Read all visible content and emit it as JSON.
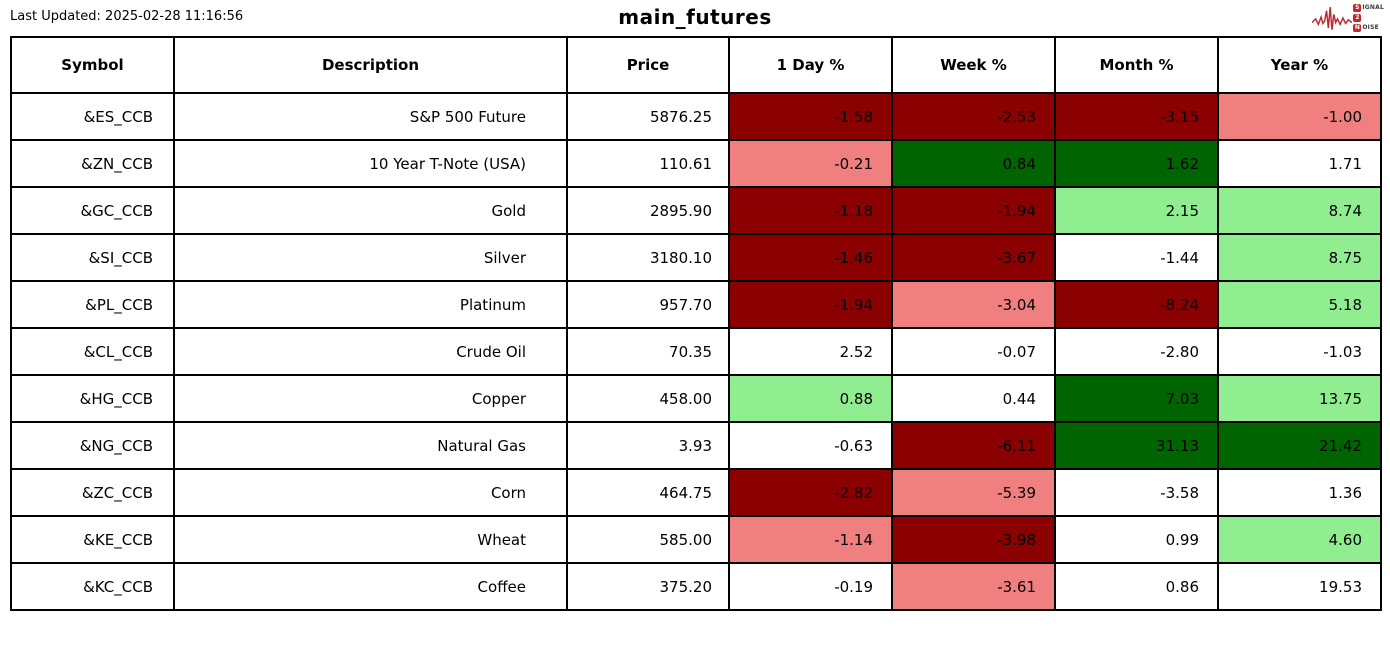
{
  "header": {
    "last_updated": "Last Updated: 2025-02-28 11:16:56",
    "title": "main_futures",
    "logo": {
      "s": "S",
      "ignal": "IGNAL",
      "two": "2",
      "n": "N",
      "oise": "OISE"
    }
  },
  "colors": {
    "dark_red": "#8b0000",
    "light_red": "#f08080",
    "dark_green": "#006400",
    "light_green": "#90ee90",
    "white": "#ffffff",
    "logo_red": "#c0272d",
    "border": "#000000"
  },
  "table": {
    "columns": [
      "Symbol",
      "Description",
      "Price",
      "1 Day %",
      "Week %",
      "Month %",
      "Year %"
    ],
    "rows": [
      {
        "symbol": "&ES_CCB",
        "description": "S&P 500 Future",
        "price": "5876.25",
        "day": {
          "value": "-1.58",
          "color": "dark_red"
        },
        "week": {
          "value": "-2.53",
          "color": "dark_red"
        },
        "month": {
          "value": "-3.15",
          "color": "dark_red"
        },
        "year": {
          "value": "-1.00",
          "color": "light_red"
        }
      },
      {
        "symbol": "&ZN_CCB",
        "description": "10 Year T-Note (USA)",
        "price": "110.61",
        "day": {
          "value": "-0.21",
          "color": "light_red"
        },
        "week": {
          "value": "0.84",
          "color": "dark_green"
        },
        "month": {
          "value": "1.62",
          "color": "dark_green"
        },
        "year": {
          "value": "1.71",
          "color": "white"
        }
      },
      {
        "symbol": "&GC_CCB",
        "description": "Gold",
        "price": "2895.90",
        "day": {
          "value": "-1.18",
          "color": "dark_red"
        },
        "week": {
          "value": "-1.94",
          "color": "dark_red"
        },
        "month": {
          "value": "2.15",
          "color": "light_green"
        },
        "year": {
          "value": "8.74",
          "color": "light_green"
        }
      },
      {
        "symbol": "&SI_CCB",
        "description": "Silver",
        "price": "3180.10",
        "day": {
          "value": "-1.46",
          "color": "dark_red"
        },
        "week": {
          "value": "-3.67",
          "color": "dark_red"
        },
        "month": {
          "value": "-1.44",
          "color": "white"
        },
        "year": {
          "value": "8.75",
          "color": "light_green"
        }
      },
      {
        "symbol": "&PL_CCB",
        "description": "Platinum",
        "price": "957.70",
        "day": {
          "value": "-1.94",
          "color": "dark_red"
        },
        "week": {
          "value": "-3.04",
          "color": "light_red"
        },
        "month": {
          "value": "-8.24",
          "color": "dark_red"
        },
        "year": {
          "value": "5.18",
          "color": "light_green"
        }
      },
      {
        "symbol": "&CL_CCB",
        "description": "Crude Oil",
        "price": "70.35",
        "day": {
          "value": "2.52",
          "color": "white"
        },
        "week": {
          "value": "-0.07",
          "color": "white"
        },
        "month": {
          "value": "-2.80",
          "color": "white"
        },
        "year": {
          "value": "-1.03",
          "color": "white"
        }
      },
      {
        "symbol": "&HG_CCB",
        "description": "Copper",
        "price": "458.00",
        "day": {
          "value": "0.88",
          "color": "light_green"
        },
        "week": {
          "value": "0.44",
          "color": "white"
        },
        "month": {
          "value": "7.03",
          "color": "dark_green"
        },
        "year": {
          "value": "13.75",
          "color": "light_green"
        }
      },
      {
        "symbol": "&NG_CCB",
        "description": "Natural Gas",
        "price": "3.93",
        "day": {
          "value": "-0.63",
          "color": "white"
        },
        "week": {
          "value": "-6.11",
          "color": "dark_red"
        },
        "month": {
          "value": "31.13",
          "color": "dark_green"
        },
        "year": {
          "value": "21.42",
          "color": "dark_green"
        }
      },
      {
        "symbol": "&ZC_CCB",
        "description": "Corn",
        "price": "464.75",
        "day": {
          "value": "-2.82",
          "color": "dark_red"
        },
        "week": {
          "value": "-5.39",
          "color": "light_red"
        },
        "month": {
          "value": "-3.58",
          "color": "white"
        },
        "year": {
          "value": "1.36",
          "color": "white"
        }
      },
      {
        "symbol": "&KE_CCB",
        "description": "Wheat",
        "price": "585.00",
        "day": {
          "value": "-1.14",
          "color": "light_red"
        },
        "week": {
          "value": "-3.98",
          "color": "dark_red"
        },
        "month": {
          "value": "0.99",
          "color": "white"
        },
        "year": {
          "value": "4.60",
          "color": "light_green"
        }
      },
      {
        "symbol": "&KC_CCB",
        "description": "Coffee",
        "price": "375.20",
        "day": {
          "value": "-0.19",
          "color": "white"
        },
        "week": {
          "value": "-3.61",
          "color": "light_red"
        },
        "month": {
          "value": "0.86",
          "color": "white"
        },
        "year": {
          "value": "19.53",
          "color": "white"
        }
      }
    ]
  },
  "chart_data": {
    "type": "table",
    "title": "main_futures",
    "columns": [
      "Symbol",
      "Description",
      "Price",
      "1 Day %",
      "Week %",
      "Month %",
      "Year %"
    ],
    "rows": [
      [
        "&ES_CCB",
        "S&P 500 Future",
        5876.25,
        -1.58,
        -2.53,
        -3.15,
        -1.0
      ],
      [
        "&ZN_CCB",
        "10 Year T-Note (USA)",
        110.61,
        -0.21,
        0.84,
        1.62,
        1.71
      ],
      [
        "&GC_CCB",
        "Gold",
        2895.9,
        -1.18,
        -1.94,
        2.15,
        8.74
      ],
      [
        "&SI_CCB",
        "Silver",
        3180.1,
        -1.46,
        -3.67,
        -1.44,
        8.75
      ],
      [
        "&PL_CCB",
        "Platinum",
        957.7,
        -1.94,
        -3.04,
        -8.24,
        5.18
      ],
      [
        "&CL_CCB",
        "Crude Oil",
        70.35,
        2.52,
        -0.07,
        -2.8,
        -1.03
      ],
      [
        "&HG_CCB",
        "Copper",
        458.0,
        0.88,
        0.44,
        7.03,
        13.75
      ],
      [
        "&NG_CCB",
        "Natural Gas",
        3.93,
        -0.63,
        -6.11,
        31.13,
        21.42
      ],
      [
        "&ZC_CCB",
        "Corn",
        464.75,
        -2.82,
        -5.39,
        -3.58,
        1.36
      ],
      [
        "&KE_CCB",
        "Wheat",
        585.0,
        -1.14,
        -3.98,
        0.99,
        4.6
      ],
      [
        "&KC_CCB",
        "Coffee",
        375.2,
        -0.19,
        -3.61,
        0.86,
        19.53
      ]
    ],
    "cell_color_legend": {
      "dark_red": "strong negative",
      "light_red": "mild negative",
      "white": "neutral",
      "light_green": "mild positive",
      "dark_green": "strong positive"
    }
  }
}
